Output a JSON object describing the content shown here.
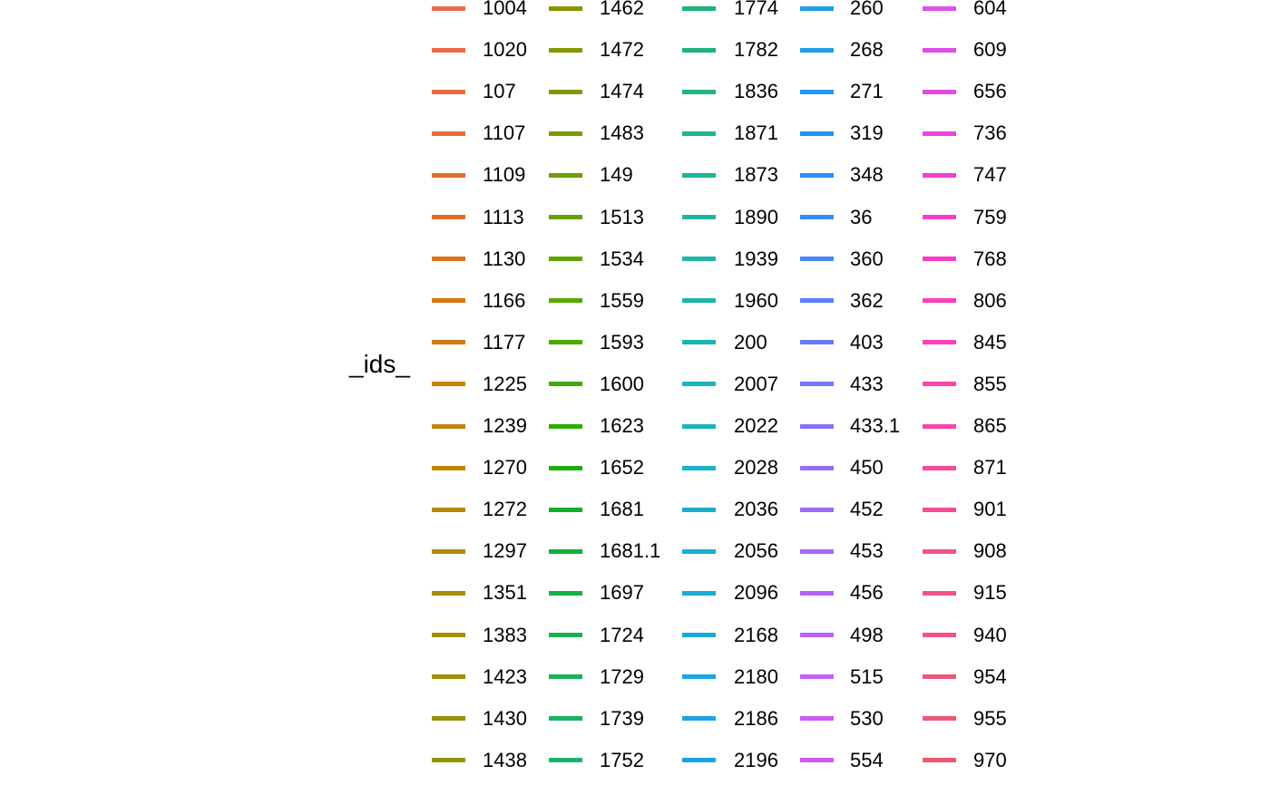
{
  "chart_data": {
    "type": "line",
    "legend": {
      "title": "_ids_",
      "placement": "right",
      "columns": [
        {
          "entries": [
            {
              "label": "1004",
              "color": "#EA6A4F"
            },
            {
              "label": "1020",
              "color": "#E96A4A"
            },
            {
              "label": "107",
              "color": "#E86B42"
            },
            {
              "label": "1107",
              "color": "#E76D3A"
            },
            {
              "label": "1109",
              "color": "#E26E2E"
            },
            {
              "label": "1113",
              "color": "#E07024"
            },
            {
              "label": "1130",
              "color": "#DC7416"
            },
            {
              "label": "1166",
              "color": "#D67812"
            },
            {
              "label": "1177",
              "color": "#D07D0B"
            },
            {
              "label": "1225",
              "color": "#CB8006"
            },
            {
              "label": "1239",
              "color": "#C48405"
            },
            {
              "label": "1270",
              "color": "#BE8606"
            },
            {
              "label": "1272",
              "color": "#B78A04"
            },
            {
              "label": "1297",
              "color": "#B08C05"
            },
            {
              "label": "1351",
              "color": "#A98F05"
            },
            {
              "label": "1383",
              "color": "#A38F05"
            },
            {
              "label": "1423",
              "color": "#9D9106"
            },
            {
              "label": "1430",
              "color": "#979205"
            },
            {
              "label": "1438",
              "color": "#919404"
            }
          ]
        },
        {
          "entries": [
            {
              "label": "1462",
              "color": "#8B9503"
            },
            {
              "label": "1472",
              "color": "#869703"
            },
            {
              "label": "1474",
              "color": "#7F9A02"
            },
            {
              "label": "1483",
              "color": "#789C02"
            },
            {
              "label": "149",
              "color": "#709F01"
            },
            {
              "label": "1513",
              "color": "#68A201"
            },
            {
              "label": "1534",
              "color": "#5FA500"
            },
            {
              "label": "1559",
              "color": "#55A800"
            },
            {
              "label": "1593",
              "color": "#4AAA00"
            },
            {
              "label": "1600",
              "color": "#3DAB00"
            },
            {
              "label": "1623",
              "color": "#2DAD00"
            },
            {
              "label": "1652",
              "color": "#1BAE10"
            },
            {
              "label": "1681",
              "color": "#12AF2A"
            },
            {
              "label": "1681.1",
              "color": "#11B037"
            },
            {
              "label": "1697",
              "color": "#14B145"
            },
            {
              "label": "1724",
              "color": "#16B14F"
            },
            {
              "label": "1729",
              "color": "#18B25A"
            },
            {
              "label": "1739",
              "color": "#1AB264"
            },
            {
              "label": "1752",
              "color": "#1BB26E"
            }
          ]
        },
        {
          "entries": [
            {
              "label": "1774",
              "color": "#1DB378"
            },
            {
              "label": "1782",
              "color": "#1EB381"
            },
            {
              "label": "1836",
              "color": "#1FB389"
            },
            {
              "label": "1871",
              "color": "#1FB491"
            },
            {
              "label": "1873",
              "color": "#1FB498"
            },
            {
              "label": "1890",
              "color": "#1FB49F"
            },
            {
              "label": "1939",
              "color": "#1FB4A6"
            },
            {
              "label": "1960",
              "color": "#1EB4AD"
            },
            {
              "label": "200",
              "color": "#1DB3B3"
            },
            {
              "label": "2007",
              "color": "#1CB3B9"
            },
            {
              "label": "2022",
              "color": "#1BB2BF"
            },
            {
              "label": "2028",
              "color": "#1AB1C5"
            },
            {
              "label": "2036",
              "color": "#19AFCB"
            },
            {
              "label": "2056",
              "color": "#18AED0"
            },
            {
              "label": "2096",
              "color": "#18ACD5"
            },
            {
              "label": "2168",
              "color": "#18AAD9"
            },
            {
              "label": "2180",
              "color": "#19A8DE"
            },
            {
              "label": "2186",
              "color": "#1BA5E2"
            },
            {
              "label": "2196",
              "color": "#1DA2E6"
            }
          ]
        },
        {
          "entries": [
            {
              "label": "260",
              "color": "#1F9FEA"
            },
            {
              "label": "268",
              "color": "#1F9CEE"
            },
            {
              "label": "271",
              "color": "#1F98F1"
            },
            {
              "label": "319",
              "color": "#1F94F4"
            },
            {
              "label": "348",
              "color": "#2A8FF6"
            },
            {
              "label": "36",
              "color": "#3C8AF7"
            },
            {
              "label": "360",
              "color": "#4D84F8"
            },
            {
              "label": "362",
              "color": "#5C7FF9"
            },
            {
              "label": "403",
              "color": "#6B7AF9"
            },
            {
              "label": "433",
              "color": "#7876F9"
            },
            {
              "label": "433.1",
              "color": "#8573F9"
            },
            {
              "label": "450",
              "color": "#916FF9"
            },
            {
              "label": "452",
              "color": "#9D6BF9"
            },
            {
              "label": "453",
              "color": "#A868F8"
            },
            {
              "label": "456",
              "color": "#B264F7"
            },
            {
              "label": "498",
              "color": "#BC61F6"
            },
            {
              "label": "515",
              "color": "#C55EF4"
            },
            {
              "label": "530",
              "color": "#CD5AF1"
            },
            {
              "label": "554",
              "color": "#D456EE"
            }
          ]
        },
        {
          "entries": [
            {
              "label": "604",
              "color": "#DB51EB"
            },
            {
              "label": "609",
              "color": "#E24CE7"
            },
            {
              "label": "656",
              "color": "#E847E2"
            },
            {
              "label": "736",
              "color": "#ED43DC"
            },
            {
              "label": "747",
              "color": "#F13FD5"
            },
            {
              "label": "759",
              "color": "#F53ECE"
            },
            {
              "label": "768",
              "color": "#F73EC7"
            },
            {
              "label": "806",
              "color": "#F93FBF"
            },
            {
              "label": "845",
              "color": "#FA41B7"
            },
            {
              "label": "855",
              "color": "#FA44AF"
            },
            {
              "label": "865",
              "color": "#FA47A7"
            },
            {
              "label": "871",
              "color": "#F94A9F"
            },
            {
              "label": "901",
              "color": "#F74D97"
            },
            {
              "label": "908",
              "color": "#F5508F"
            },
            {
              "label": "915",
              "color": "#F35388"
            },
            {
              "label": "940",
              "color": "#F15581"
            },
            {
              "label": "954",
              "color": "#EF577A"
            },
            {
              "label": "955",
              "color": "#ED5874"
            },
            {
              "label": "970",
              "color": "#EB596E"
            }
          ]
        }
      ]
    }
  }
}
